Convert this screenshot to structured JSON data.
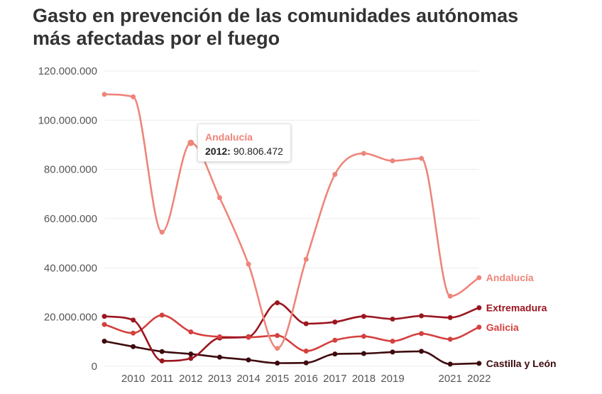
{
  "title_lines": [
    "Gasto en prevención de las comunidades autónomas",
    "más afectadas por el fuego"
  ],
  "tooltip": {
    "series": "Andalucía",
    "year": "2012:",
    "value": "90.806.472"
  },
  "chart_data": {
    "type": "line",
    "x": [
      2009,
      2010,
      2011,
      2012,
      2013,
      2014,
      2015,
      2016,
      2017,
      2018,
      2019,
      2020,
      2021,
      2022
    ],
    "x_tick_labels": [
      {
        "x": 2010,
        "label": "2010"
      },
      {
        "x": 2011,
        "label": "2011"
      },
      {
        "x": 2012,
        "label": "2012"
      },
      {
        "x": 2013,
        "label": "2013"
      },
      {
        "x": 2014,
        "label": "2014"
      },
      {
        "x": 2015,
        "label": "2015"
      },
      {
        "x": 2016,
        "label": "2016"
      },
      {
        "x": 2017,
        "label": "2017"
      },
      {
        "x": 2018,
        "label": "2018"
      },
      {
        "x": 2019,
        "label": "2019"
      },
      {
        "x": 2021,
        "label": "2021"
      },
      {
        "x": 2022,
        "label": "2022"
      }
    ],
    "y_ticks": [
      {
        "value": 0,
        "label": "0"
      },
      {
        "value": 20000000,
        "label": "20.000.000"
      },
      {
        "value": 40000000,
        "label": "40.000.000"
      },
      {
        "value": 60000000,
        "label": "60.000.000"
      },
      {
        "value": 80000000,
        "label": "80.000.000"
      },
      {
        "value": 100000000,
        "label": "100.000.000"
      },
      {
        "value": 120000000,
        "label": "120.000.000"
      }
    ],
    "ylim": [
      0,
      120000000
    ],
    "grid": true,
    "series": [
      {
        "name": "Andalucía",
        "color": "#ee857a",
        "values": [
          110500000,
          109500000,
          54500000,
          90806472,
          68500000,
          41500000,
          7300000,
          43500000,
          78000000,
          86500000,
          83500000,
          84500000,
          28500000,
          36000000
        ]
      },
      {
        "name": "Extremadura",
        "color": "#9b1620",
        "values": [
          20300000,
          18800000,
          2200000,
          3200000,
          11500000,
          12000000,
          25800000,
          17300000,
          18000000,
          20300000,
          19200000,
          20500000,
          19800000,
          23800000
        ]
      },
      {
        "name": "Galicia",
        "color": "#d4403e",
        "values": [
          17000000,
          13500000,
          20800000,
          14000000,
          12000000,
          11800000,
          12500000,
          6200000,
          10600000,
          12200000,
          10200000,
          13300000,
          11000000,
          15900000
        ]
      },
      {
        "name": "Castilla y León",
        "color": "#3d0a0e",
        "values": [
          10200000,
          8000000,
          6000000,
          5000000,
          3700000,
          2600000,
          1300000,
          1400000,
          5000000,
          5200000,
          5800000,
          6100000,
          900000,
          1200000
        ]
      }
    ],
    "highlight": {
      "series": "Andalucía",
      "x": 2012
    }
  }
}
